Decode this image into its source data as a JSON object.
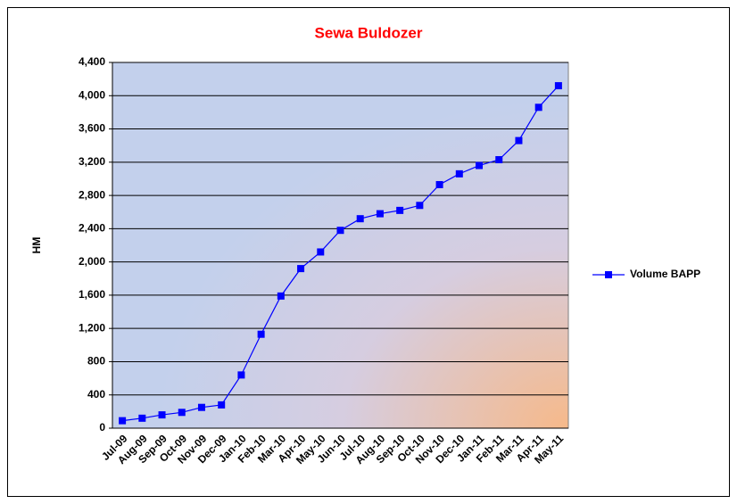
{
  "chart_data": {
    "type": "line",
    "title": "Sewa Buldozer",
    "y_label": "HM",
    "categories": [
      "Jul-09",
      "Aug-09",
      "Sep-09",
      "Oct-09",
      "Nov-09",
      "Dec-09",
      "Jan-10",
      "Feb-10",
      "Mar-10",
      "Apr-10",
      "May-10",
      "Jun-10",
      "Jul-10",
      "Aug-10",
      "Sep-10",
      "Oct-10",
      "Nov-10",
      "Dec-10",
      "Jan-11",
      "Feb-11",
      "Mar-11",
      "Apr-11",
      "May-11"
    ],
    "series": [
      {
        "name": "Volume BAPP",
        "color": "#0000ff",
        "values": [
          90,
          120,
          160,
          190,
          250,
          280,
          640,
          1130,
          1590,
          1920,
          2120,
          2380,
          2520,
          2580,
          2620,
          2680,
          2930,
          3060,
          3160,
          3230,
          3460,
          3860,
          4120
        ]
      }
    ],
    "ylim": [
      0,
      4400
    ],
    "yticks": [
      0,
      400,
      800,
      {
        "value": 1200,
        "label": "1,200"
      },
      {
        "value": 1600,
        "label": "1,600"
      },
      {
        "value": 2000,
        "label": "2,000"
      },
      {
        "value": 2400,
        "label": "2,400"
      },
      {
        "value": 2800,
        "label": "2,800"
      },
      {
        "value": 3200,
        "label": "3,200"
      },
      {
        "value": 3600,
        "label": "3,600"
      },
      {
        "value": 4000,
        "label": "4,000"
      },
      {
        "value": 4400,
        "label": "4,400"
      }
    ],
    "grid": true,
    "legend": "right"
  }
}
